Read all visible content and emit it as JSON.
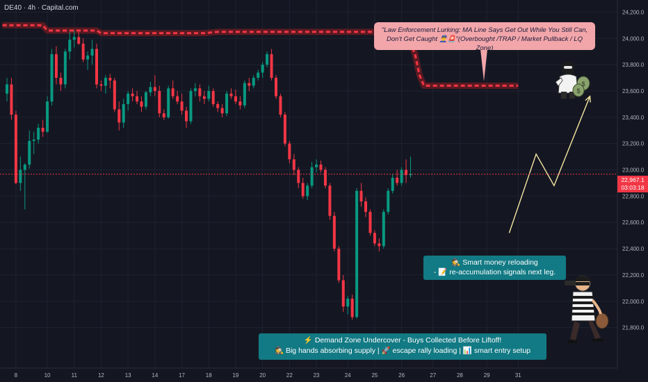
{
  "symbol_label": "DE40 · 4h · Capital.com",
  "chart_data": {
    "type": "candlestick",
    "ylim": [
      21650,
      24250
    ],
    "y_ticks": [
      21800,
      22000,
      22200,
      22400,
      22600,
      22800,
      23000,
      23200,
      23400,
      23600,
      23800,
      24000,
      24200
    ],
    "y_tick_labels": [
      "21,800.0",
      "22,000.0",
      "22,200.0",
      "22,400.0",
      "22,600.0",
      "22,800.0",
      "23,000.0",
      "23,200.0",
      "23,400.0",
      "23,600.0",
      "23,800.0",
      "24,000.0",
      "24,200.0"
    ],
    "x_ticks": [
      {
        "label": "8",
        "index": 2
      },
      {
        "label": "10",
        "index": 9
      },
      {
        "label": "11",
        "index": 15
      },
      {
        "label": "12",
        "index": 21
      },
      {
        "label": "13",
        "index": 27
      },
      {
        "label": "14",
        "index": 33
      },
      {
        "label": "17",
        "index": 39
      },
      {
        "label": "18",
        "index": 45
      },
      {
        "label": "19",
        "index": 51
      },
      {
        "label": "20",
        "index": 57
      },
      {
        "label": "22",
        "index": 63
      },
      {
        "label": "23",
        "index": 69
      },
      {
        "label": "24",
        "index": 76
      },
      {
        "label": "25",
        "index": 82
      },
      {
        "label": "26",
        "index": 88
      },
      {
        "label": "27",
        "index": 95
      },
      {
        "label": "28",
        "index": 101
      },
      {
        "label": "29",
        "index": 107
      },
      {
        "label": "31",
        "index": 114
      }
    ],
    "candles": [
      [
        23580,
        23700,
        23520,
        23650
      ],
      [
        23650,
        23700,
        23380,
        23420
      ],
      [
        23420,
        23450,
        22890,
        22900
      ],
      [
        22900,
        23100,
        22840,
        23000
      ],
      [
        23000,
        23050,
        22700,
        23040
      ],
      [
        23040,
        23300,
        23010,
        23220
      ],
      [
        23220,
        23290,
        23120,
        23230
      ],
      [
        23230,
        23350,
        23200,
        23320
      ],
      [
        23320,
        23380,
        23250,
        23290
      ],
      [
        23290,
        23560,
        23280,
        23520
      ],
      [
        23520,
        23920,
        23490,
        23880
      ],
      [
        23880,
        23940,
        23650,
        23700
      ],
      [
        23700,
        23740,
        23600,
        23650
      ],
      [
        23650,
        23920,
        23620,
        23900
      ],
      [
        23900,
        24050,
        23840,
        23990
      ],
      [
        23990,
        24060,
        23930,
        24010
      ],
      [
        24010,
        24050,
        23950,
        23960
      ],
      [
        23960,
        24000,
        23820,
        23840
      ],
      [
        23840,
        23900,
        23760,
        23870
      ],
      [
        23870,
        23990,
        23800,
        23920
      ],
      [
        23920,
        23960,
        23620,
        23650
      ],
      [
        23650,
        23680,
        23600,
        23640
      ],
      [
        23640,
        23720,
        23580,
        23700
      ],
      [
        23700,
        23730,
        23620,
        23680
      ],
      [
        23680,
        23700,
        23440,
        23460
      ],
      [
        23460,
        23520,
        23300,
        23360
      ],
      [
        23360,
        23540,
        23320,
        23500
      ],
      [
        23500,
        23600,
        23450,
        23580
      ],
      [
        23580,
        23620,
        23520,
        23560
      ],
      [
        23560,
        23600,
        23500,
        23520
      ],
      [
        23520,
        23560,
        23440,
        23480
      ],
      [
        23480,
        23600,
        23460,
        23590
      ],
      [
        23590,
        23670,
        23560,
        23630
      ],
      [
        23630,
        23720,
        23560,
        23600
      ],
      [
        23600,
        23640,
        23400,
        23430
      ],
      [
        23430,
        23460,
        23380,
        23400
      ],
      [
        23400,
        23640,
        23390,
        23620
      ],
      [
        23620,
        23680,
        23540,
        23560
      ],
      [
        23560,
        23600,
        23500,
        23520
      ],
      [
        23520,
        23580,
        23420,
        23450
      ],
      [
        23450,
        23480,
        23320,
        23370
      ],
      [
        23370,
        23620,
        23350,
        23600
      ],
      [
        23600,
        23660,
        23560,
        23620
      ],
      [
        23620,
        23650,
        23520,
        23560
      ],
      [
        23560,
        23600,
        23500,
        23540
      ],
      [
        23540,
        23640,
        23520,
        23600
      ],
      [
        23600,
        23620,
        23480,
        23500
      ],
      [
        23500,
        23520,
        23440,
        23470
      ],
      [
        23470,
        23500,
        23400,
        23430
      ],
      [
        23430,
        23600,
        23410,
        23580
      ],
      [
        23580,
        23620,
        23540,
        23560
      ],
      [
        23560,
        23610,
        23500,
        23520
      ],
      [
        23520,
        23560,
        23460,
        23490
      ],
      [
        23490,
        23680,
        23470,
        23660
      ],
      [
        23660,
        23700,
        23600,
        23640
      ],
      [
        23640,
        23720,
        23620,
        23700
      ],
      [
        23700,
        23760,
        23680,
        23740
      ],
      [
        23740,
        23820,
        23700,
        23800
      ],
      [
        23800,
        23900,
        23780,
        23880
      ],
      [
        23880,
        23920,
        23680,
        23700
      ],
      [
        23700,
        23720,
        23540,
        23560
      ],
      [
        23560,
        23580,
        23400,
        23420
      ],
      [
        23420,
        23440,
        23180,
        23200
      ],
      [
        23200,
        23220,
        23050,
        23080
      ],
      [
        23080,
        23120,
        22960,
        23000
      ],
      [
        23000,
        23020,
        22860,
        22900
      ],
      [
        22900,
        22940,
        22780,
        22800
      ],
      [
        22800,
        22900,
        22770,
        22880
      ],
      [
        22880,
        23060,
        22860,
        23020
      ],
      [
        23020,
        23080,
        22980,
        23040
      ],
      [
        23040,
        23070,
        22980,
        23000
      ],
      [
        23000,
        23020,
        22860,
        22880
      ],
      [
        22880,
        22900,
        22620,
        22650
      ],
      [
        22650,
        22680,
        22380,
        22400
      ],
      [
        22400,
        22420,
        22140,
        22160
      ],
      [
        22160,
        22200,
        21920,
        21960
      ],
      [
        21960,
        22040,
        21900,
        22020
      ],
      [
        22020,
        22050,
        21860,
        21880
      ],
      [
        21880,
        22860,
        21870,
        22840
      ],
      [
        22840,
        22900,
        22720,
        22760
      ],
      [
        22760,
        22790,
        22640,
        22680
      ],
      [
        22680,
        22700,
        22500,
        22520
      ],
      [
        22520,
        22540,
        22420,
        22440
      ],
      [
        22440,
        22480,
        22380,
        22420
      ],
      [
        22420,
        22700,
        22400,
        22680
      ],
      [
        22680,
        22860,
        22660,
        22840
      ],
      [
        22840,
        22970,
        22820,
        22940
      ],
      [
        22940,
        23000,
        22880,
        22900
      ],
      [
        22900,
        23020,
        22880,
        23000
      ],
      [
        23000,
        23080,
        22900,
        22960
      ],
      [
        22960,
        23100,
        22940,
        22967
      ]
    ],
    "bull_color": "#089981",
    "bear_color": "#f23645",
    "current_price": 22967.1,
    "current_price_label": "22,967.1",
    "countdown_label": "03:03:18",
    "ma_line": [
      [
        -1,
        24100
      ],
      [
        8,
        24100
      ],
      [
        9,
        24060
      ],
      [
        20,
        24060
      ],
      [
        21,
        24040
      ],
      [
        44,
        24040
      ],
      [
        47,
        24050
      ],
      [
        89,
        24050
      ],
      [
        91,
        23880
      ],
      [
        92,
        23720
      ],
      [
        93,
        23640
      ],
      [
        114,
        23640
      ]
    ],
    "projection": [
      [
        112,
        22520
      ],
      [
        118,
        23120
      ],
      [
        122,
        22880
      ],
      [
        130,
        23560
      ]
    ]
  },
  "callouts": {
    "pink_line1": "\"Law Enforcement Lurking: MA Line Says Get Out While You Still Can,",
    "pink_line2": "Don't Get Caught 👮‍♂️🚨\"(Overbought /TRAP / Market Pullback / LQ Zone)",
    "teal1_line1": "🕵 Smart money reloading",
    "teal1_line2": "- 📝 re-accumulation signals next leg.",
    "teal2_line1": "⚡ Demand Zone Undercover - Buys Collected Before Liftoff!",
    "teal2_line2": "🕵 Big hands absorbing supply | 🚀 escape rally loading | 📊 smart entry setup"
  },
  "colors": {
    "background": "#141722",
    "axis_text": "#b2b5be",
    "grid": "#1e2230",
    "ma_red": "#f23645",
    "ma_glow": "#5a1a22",
    "projection": "#f5e6a0",
    "price_line": "#f23645"
  },
  "icons": [
    "masked-robber-with-money-bags-icon",
    "robber-with-binoculars-icon"
  ]
}
